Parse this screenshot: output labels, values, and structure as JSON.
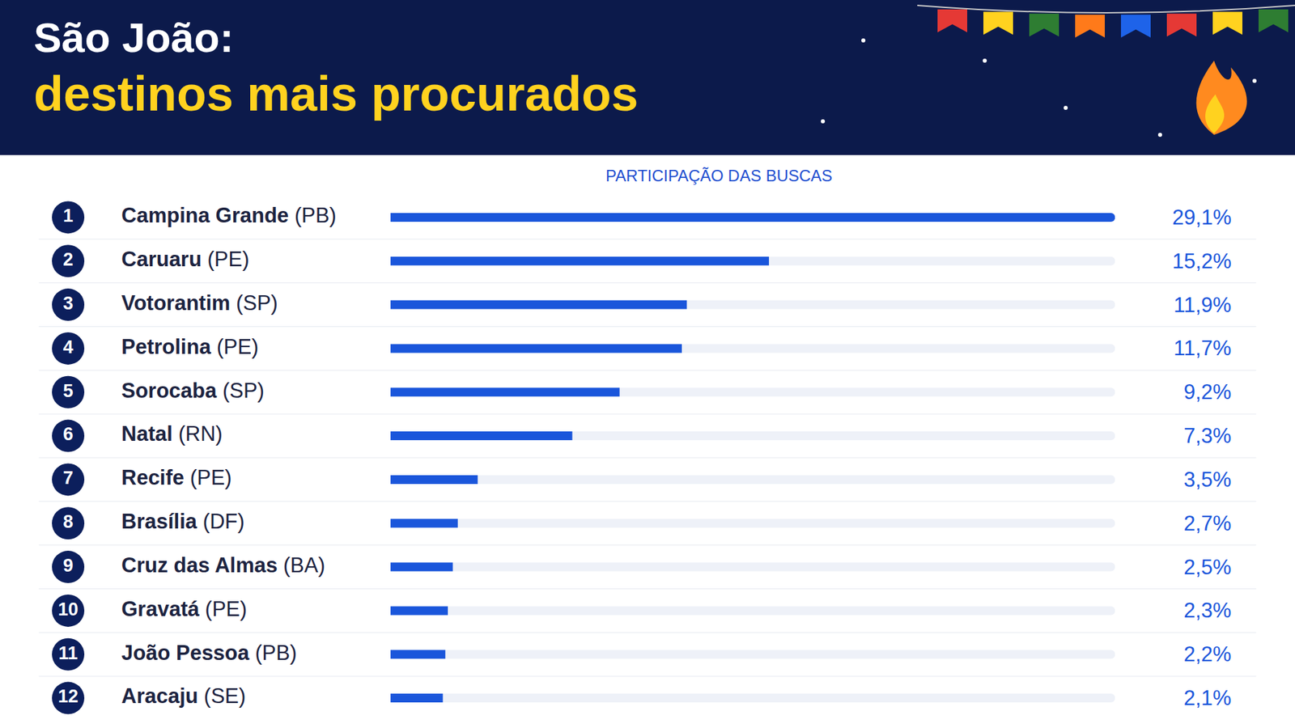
{
  "chart_data": {
    "type": "bar",
    "title": "São João:",
    "subtitle": "destinos mais procurados",
    "xlabel": "PARTICIPAÇÃO DAS BUSCAS",
    "orientation": "horizontal",
    "ranks": [
      1,
      2,
      3,
      4,
      5,
      6,
      7,
      8,
      9,
      10,
      11,
      12
    ],
    "categories": [
      "Campina Grande (PB)",
      "Caruaru (PE)",
      "Votorantim (SP)",
      "Petrolina (PE)",
      "Sorocaba (SP)",
      "Natal (RN)",
      "Recife (PE)",
      "Brasília (DF)",
      "Cruz das Almas (BA)",
      "Gravatá (PE)",
      "João Pessoa (PB)",
      "Aracaju (SE)"
    ],
    "values": [
      29.1,
      15.2,
      11.9,
      11.7,
      9.2,
      7.3,
      3.5,
      2.7,
      2.5,
      2.3,
      2.2,
      2.1
    ],
    "value_labels": [
      "29,1%",
      "15,2%",
      "11,9%",
      "11,7%",
      "9,2%",
      "7,3%",
      "3,5%",
      "2,7%",
      "2,5%",
      "2,3%",
      "2,2%",
      "2,1%"
    ],
    "color": "#1a56db",
    "xlim": [
      0,
      29.1
    ],
    "xticks": [],
    "data_labels": true,
    "tick_labels": false,
    "grid": false
  }
}
